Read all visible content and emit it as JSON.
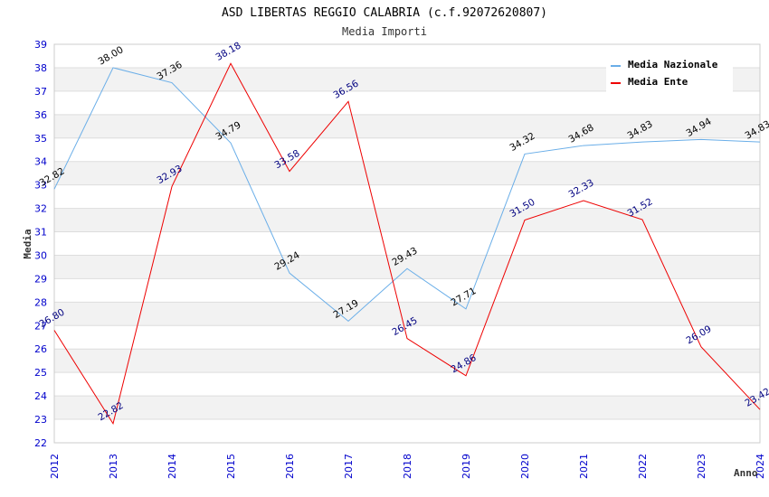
{
  "chart_data": {
    "type": "line",
    "title": "ASD LIBERTAS REGGIO CALABRIA (c.f.92072620807)",
    "subtitle": "Media Importi",
    "xlabel": "Anno",
    "ylabel": "Media",
    "ylim": [
      22,
      39
    ],
    "yticks": [
      "22",
      "23",
      "24",
      "25",
      "26",
      "27",
      "28",
      "29",
      "30",
      "31",
      "32",
      "33",
      "34",
      "35",
      "36",
      "37",
      "38",
      "39"
    ],
    "categories": [
      "2012",
      "2013",
      "2014",
      "2015",
      "2016",
      "2017",
      "2018",
      "2019",
      "2020",
      "2021",
      "2022",
      "2023",
      "2024"
    ],
    "grid": true,
    "legend_position": "top-right",
    "series": [
      {
        "name": "Media Nazionale",
        "color": "#6aaee8",
        "label_color": "#000000",
        "values": [
          32.82,
          38.0,
          37.36,
          34.79,
          29.24,
          27.19,
          29.43,
          27.71,
          34.32,
          34.68,
          34.83,
          34.94,
          34.83
        ],
        "labels": [
          "32.82",
          "38.00",
          "37.36",
          "34.79",
          "29.24",
          "27.19",
          "29.43",
          "27.71",
          "34.32",
          "34.68",
          "34.83",
          "34.94",
          "34.83"
        ]
      },
      {
        "name": "Media Ente",
        "color": "#ee0000",
        "label_color": "#000080",
        "values": [
          26.8,
          22.82,
          32.93,
          38.18,
          33.58,
          36.56,
          26.45,
          24.86,
          31.5,
          32.33,
          31.52,
          26.09,
          23.42
        ],
        "labels": [
          "26.80",
          "22.82",
          "32.93",
          "38.18",
          "33.58",
          "36.56",
          "26.45",
          "24.86",
          "31.50",
          "32.33",
          "31.52",
          "26.09",
          "23.42"
        ]
      }
    ]
  }
}
